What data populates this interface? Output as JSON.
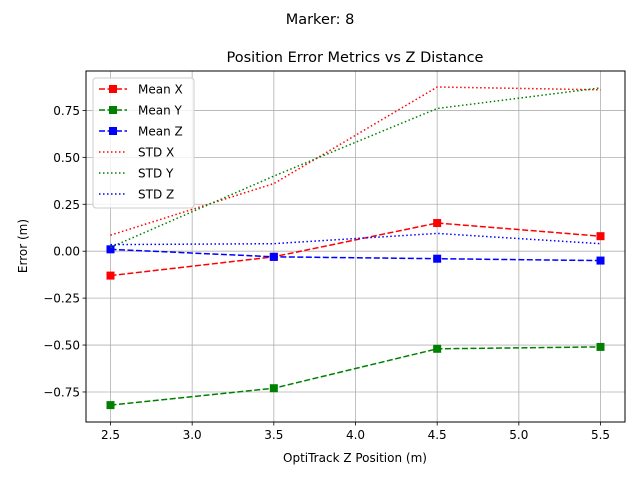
{
  "chart_data": {
    "type": "line",
    "suptitle": "Marker: 8",
    "title": "Position Error Metrics vs Z Distance",
    "xlabel": "OptiTrack Z Position (m)",
    "ylabel": "Error (m)",
    "x": [
      2.5,
      3.5,
      4.5,
      5.5
    ],
    "xlim": [
      2.35,
      5.65
    ],
    "ylim": [
      -0.91,
      0.96
    ],
    "xticks": [
      2.5,
      3.0,
      3.5,
      4.0,
      4.5,
      5.0,
      5.5
    ],
    "xtick_labels": [
      "2.5",
      "3.0",
      "3.5",
      "4.0",
      "4.5",
      "5.0",
      "5.5"
    ],
    "yticks": [
      -0.75,
      -0.5,
      -0.25,
      0.0,
      0.25,
      0.5,
      0.75
    ],
    "ytick_labels": [
      "−0.75",
      "−0.50",
      "−0.25",
      "0.00",
      "0.25",
      "0.50",
      "0.75"
    ],
    "grid": true,
    "legend_position": "upper left",
    "series": [
      {
        "name": "Mean X",
        "color": "#ff0000",
        "style": "dashed",
        "marker": "square",
        "values": [
          -0.13,
          -0.03,
          0.15,
          0.08
        ]
      },
      {
        "name": "Mean Y",
        "color": "#008000",
        "style": "dashed",
        "marker": "square",
        "values": [
          -0.82,
          -0.73,
          -0.52,
          -0.51
        ]
      },
      {
        "name": "Mean Z",
        "color": "#0000ff",
        "style": "dashed",
        "marker": "square",
        "values": [
          0.01,
          -0.03,
          -0.04,
          -0.05
        ]
      },
      {
        "name": "STD X",
        "color": "#ff0000",
        "style": "dotted",
        "marker": "none",
        "values": [
          0.085,
          0.36,
          0.875,
          0.86
        ]
      },
      {
        "name": "STD Y",
        "color": "#008000",
        "style": "dotted",
        "marker": "none",
        "values": [
          0.02,
          0.4,
          0.76,
          0.87
        ]
      },
      {
        "name": "STD Z",
        "color": "#0000ff",
        "style": "dotted",
        "marker": "none",
        "values": [
          0.035,
          0.04,
          0.095,
          0.04
        ]
      }
    ]
  }
}
